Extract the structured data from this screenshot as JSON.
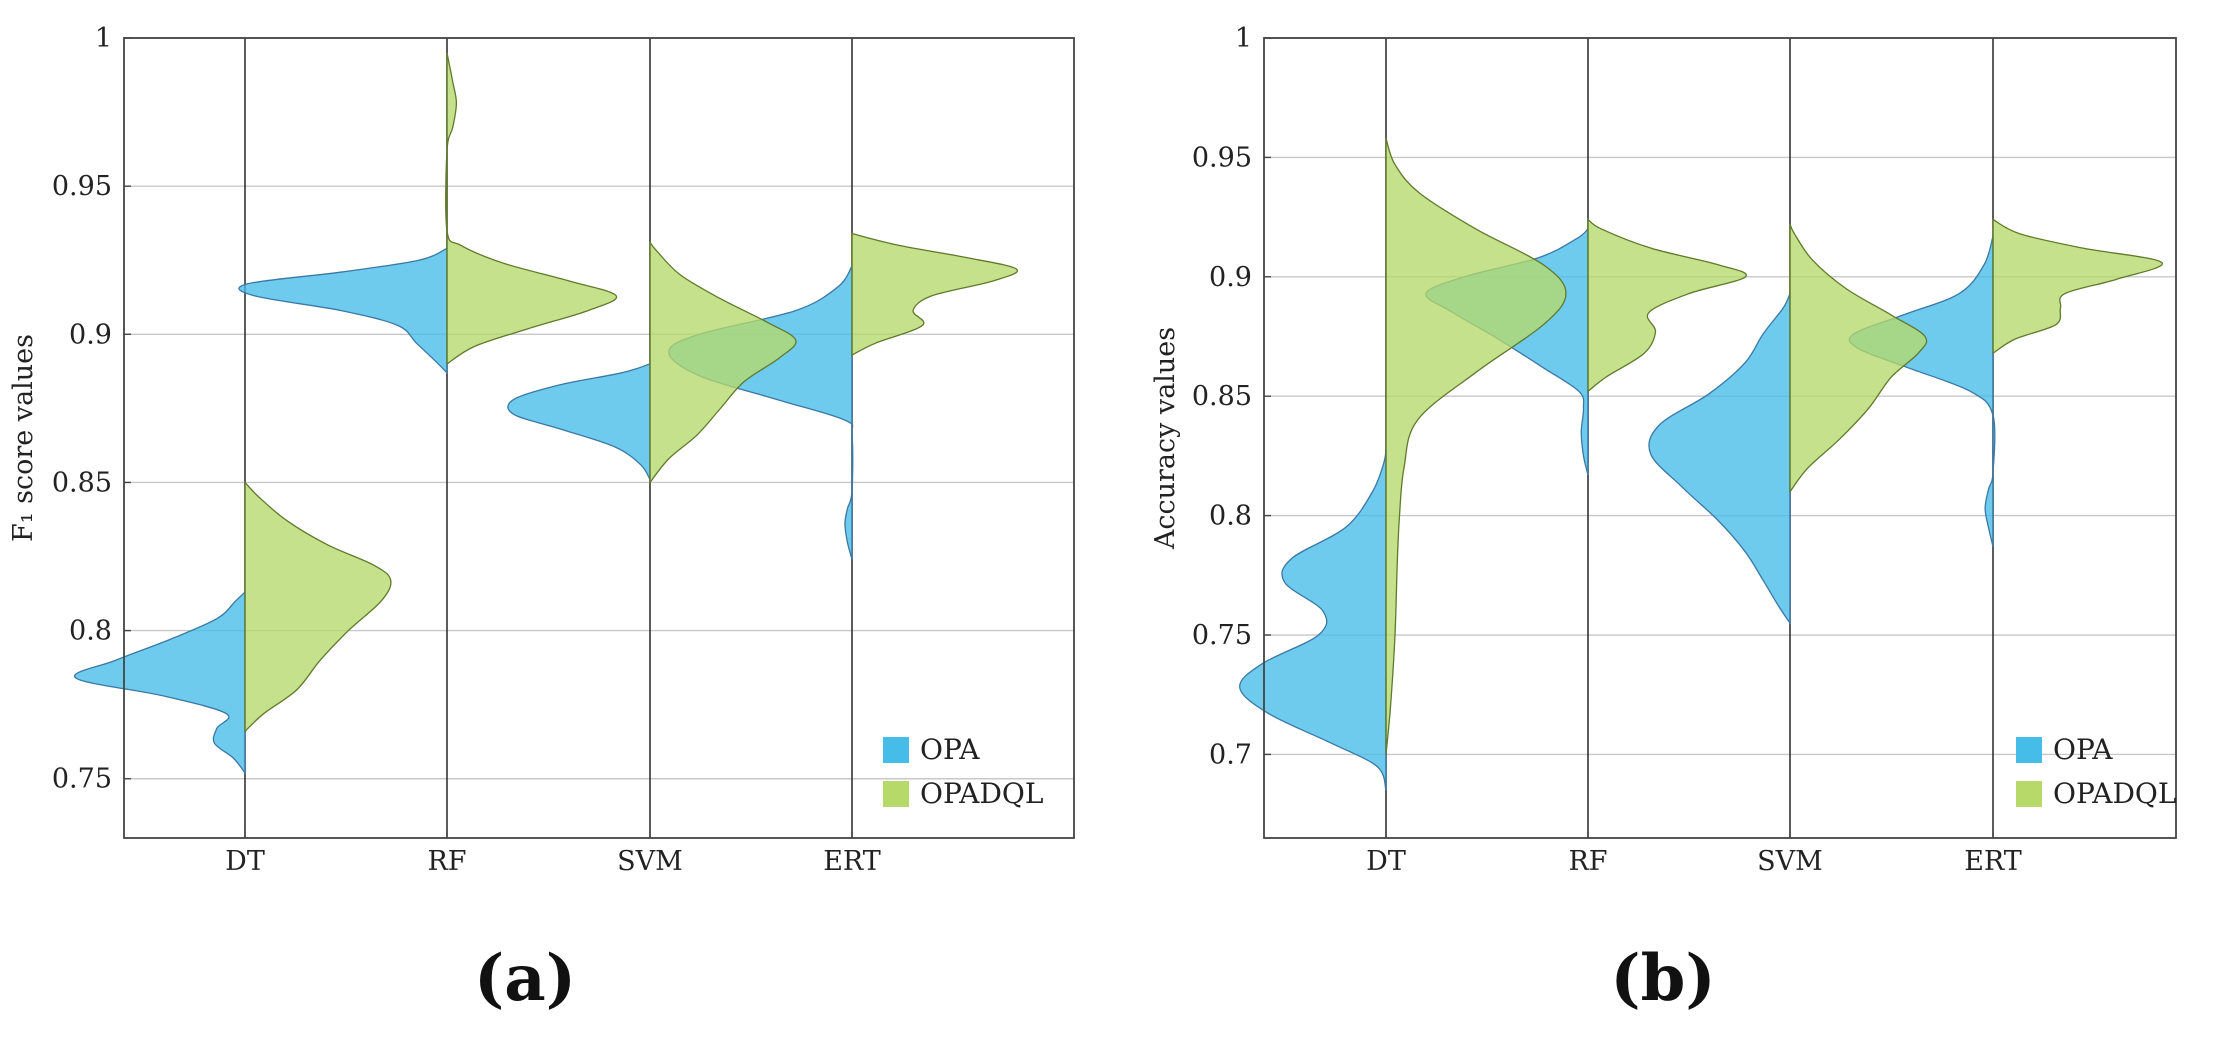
{
  "colors": {
    "opa": "#45bde8",
    "opadql": "#b6d96a"
  },
  "chart_data": [
    {
      "type": "violin",
      "panel_label": "(a)",
      "ylabel": "F₁ score values",
      "ylim": [
        0.73,
        1.0
      ],
      "yticks": [
        0.75,
        0.8,
        0.85,
        0.9,
        0.95,
        1
      ],
      "ytick_labels": [
        "0.75",
        "0.8",
        "0.85",
        "0.9",
        "0.95",
        "1"
      ],
      "categories": [
        "DT",
        "RF",
        "SVM",
        "ERT"
      ],
      "legend": {
        "position": "bottom-right",
        "entries": [
          "OPA",
          "OPADQL"
        ]
      },
      "series": [
        {
          "name": "OPA",
          "side": "left",
          "violins": [
            [
              [
                0.752,
                0
              ],
              [
                0.757,
                0.05
              ],
              [
                0.762,
                0.13
              ],
              [
                0.767,
                0.12
              ],
              [
                0.772,
                0.08
              ],
              [
                0.778,
                0.35
              ],
              [
                0.784,
                0.72
              ],
              [
                0.79,
                0.55
              ],
              [
                0.797,
                0.32
              ],
              [
                0.804,
                0.12
              ],
              [
                0.81,
                0.04
              ],
              [
                0.813,
                0
              ]
            ],
            [
              [
                0.887,
                0
              ],
              [
                0.891,
                0.05
              ],
              [
                0.897,
                0.13
              ],
              [
                0.903,
                0.21
              ],
              [
                0.908,
                0.45
              ],
              [
                0.913,
                0.82
              ],
              [
                0.917,
                0.85
              ],
              [
                0.921,
                0.45
              ],
              [
                0.925,
                0.12
              ],
              [
                0.929,
                0
              ]
            ],
            [
              [
                0.851,
                0
              ],
              [
                0.856,
                0.04
              ],
              [
                0.862,
                0.15
              ],
              [
                0.868,
                0.38
              ],
              [
                0.873,
                0.58
              ],
              [
                0.878,
                0.58
              ],
              [
                0.883,
                0.38
              ],
              [
                0.887,
                0.12
              ],
              [
                0.89,
                0
              ]
            ],
            [
              [
                0.824,
                0
              ],
              [
                0.83,
                0.02
              ],
              [
                0.836,
                0.03
              ],
              [
                0.841,
                0.02
              ],
              [
                0.847,
                0
              ],
              [
                0.866,
                0
              ],
              [
                0.871,
                0.03
              ],
              [
                0.878,
                0.32
              ],
              [
                0.886,
                0.65
              ],
              [
                0.894,
                0.78
              ],
              [
                0.9,
                0.65
              ],
              [
                0.908,
                0.24
              ],
              [
                0.916,
                0.06
              ],
              [
                0.923,
                0
              ]
            ]
          ]
        },
        {
          "name": "OPADQL",
          "side": "right",
          "violins": [
            [
              [
                0.766,
                0
              ],
              [
                0.772,
                0.08
              ],
              [
                0.78,
                0.22
              ],
              [
                0.79,
                0.32
              ],
              [
                0.8,
                0.44
              ],
              [
                0.81,
                0.58
              ],
              [
                0.817,
                0.62
              ],
              [
                0.822,
                0.55
              ],
              [
                0.829,
                0.35
              ],
              [
                0.837,
                0.18
              ],
              [
                0.845,
                0.06
              ],
              [
                0.85,
                0
              ]
            ],
            [
              [
                0.89,
                0
              ],
              [
                0.896,
                0.12
              ],
              [
                0.902,
                0.35
              ],
              [
                0.908,
                0.6
              ],
              [
                0.913,
                0.72
              ],
              [
                0.918,
                0.52
              ],
              [
                0.924,
                0.24
              ],
              [
                0.93,
                0.06
              ],
              [
                0.935,
                0
              ],
              [
                0.962,
                0
              ],
              [
                0.97,
                0.025
              ],
              [
                0.978,
                0.04
              ],
              [
                0.985,
                0.025
              ],
              [
                0.995,
                0
              ]
            ],
            [
              [
                0.85,
                0
              ],
              [
                0.858,
                0.08
              ],
              [
                0.866,
                0.2
              ],
              [
                0.875,
                0.3
              ],
              [
                0.884,
                0.4
              ],
              [
                0.892,
                0.55
              ],
              [
                0.898,
                0.62
              ],
              [
                0.904,
                0.5
              ],
              [
                0.912,
                0.3
              ],
              [
                0.92,
                0.13
              ],
              [
                0.928,
                0.03
              ],
              [
                0.931,
                0
              ]
            ],
            [
              [
                0.893,
                0
              ],
              [
                0.897,
                0.1
              ],
              [
                0.903,
                0.3
              ],
              [
                0.908,
                0.26
              ],
              [
                0.913,
                0.34
              ],
              [
                0.918,
                0.6
              ],
              [
                0.922,
                0.7
              ],
              [
                0.926,
                0.48
              ],
              [
                0.93,
                0.2
              ],
              [
                0.934,
                0
              ]
            ]
          ]
        }
      ]
    },
    {
      "type": "violin",
      "panel_label": "(b)",
      "ylabel": "Accuracy values",
      "ylim": [
        0.665,
        1.0
      ],
      "yticks": [
        0.7,
        0.75,
        0.8,
        0.85,
        0.9,
        0.95,
        1
      ],
      "ytick_labels": [
        "0.7",
        "0.75",
        "0.8",
        "0.85",
        "0.9",
        "0.95",
        "1"
      ],
      "categories": [
        "DT",
        "RF",
        "SVM",
        "ERT"
      ],
      "legend": {
        "position": "bottom-right",
        "entries": [
          "OPA",
          "OPADQL"
        ]
      },
      "series": [
        {
          "name": "OPA",
          "side": "left",
          "violins": [
            [
              [
                0.685,
                0
              ],
              [
                0.695,
                0.04
              ],
              [
                0.705,
                0.25
              ],
              [
                0.717,
                0.52
              ],
              [
                0.728,
                0.65
              ],
              [
                0.738,
                0.55
              ],
              [
                0.75,
                0.3
              ],
              [
                0.76,
                0.28
              ],
              [
                0.772,
                0.45
              ],
              [
                0.782,
                0.42
              ],
              [
                0.795,
                0.18
              ],
              [
                0.81,
                0.06
              ],
              [
                0.822,
                0.01
              ],
              [
                0.828,
                0
              ]
            ],
            [
              [
                0.817,
                0
              ],
              [
                0.825,
                0.02
              ],
              [
                0.835,
                0.03
              ],
              [
                0.845,
                0.02
              ],
              [
                0.852,
                0.04
              ],
              [
                0.862,
                0.2
              ],
              [
                0.874,
                0.4
              ],
              [
                0.885,
                0.6
              ],
              [
                0.893,
                0.72
              ],
              [
                0.9,
                0.55
              ],
              [
                0.908,
                0.22
              ],
              [
                0.916,
                0.05
              ],
              [
                0.92,
                0
              ]
            ],
            [
              [
                0.755,
                0
              ],
              [
                0.762,
                0.05
              ],
              [
                0.773,
                0.12
              ],
              [
                0.785,
                0.2
              ],
              [
                0.798,
                0.32
              ],
              [
                0.812,
                0.48
              ],
              [
                0.826,
                0.62
              ],
              [
                0.838,
                0.58
              ],
              [
                0.851,
                0.36
              ],
              [
                0.864,
                0.2
              ],
              [
                0.876,
                0.12
              ],
              [
                0.887,
                0.03
              ],
              [
                0.893,
                0
              ]
            ],
            [
              [
                0.787,
                0
              ],
              [
                0.795,
                0.02
              ],
              [
                0.803,
                0.035
              ],
              [
                0.811,
                0.02
              ],
              [
                0.818,
                0
              ],
              [
                0.842,
                0
              ],
              [
                0.852,
                0.1
              ],
              [
                0.862,
                0.38
              ],
              [
                0.87,
                0.6
              ],
              [
                0.876,
                0.62
              ],
              [
                0.884,
                0.4
              ],
              [
                0.893,
                0.15
              ],
              [
                0.905,
                0.04
              ],
              [
                0.917,
                0
              ]
            ]
          ]
        },
        {
          "name": "OPADQL",
          "side": "right",
          "violins": [
            [
              [
                0.7,
                0
              ],
              [
                0.72,
                0.02
              ],
              [
                0.75,
                0.04
              ],
              [
                0.78,
                0.05
              ],
              [
                0.8,
                0.06
              ],
              [
                0.82,
                0.08
              ],
              [
                0.84,
                0.14
              ],
              [
                0.86,
                0.4
              ],
              [
                0.88,
                0.7
              ],
              [
                0.893,
                0.8
              ],
              [
                0.905,
                0.7
              ],
              [
                0.92,
                0.4
              ],
              [
                0.935,
                0.15
              ],
              [
                0.947,
                0.04
              ],
              [
                0.958,
                0
              ]
            ],
            [
              [
                0.852,
                0
              ],
              [
                0.858,
                0.08
              ],
              [
                0.868,
                0.25
              ],
              [
                0.877,
                0.3
              ],
              [
                0.885,
                0.27
              ],
              [
                0.893,
                0.45
              ],
              [
                0.9,
                0.7
              ],
              [
                0.905,
                0.58
              ],
              [
                0.912,
                0.28
              ],
              [
                0.92,
                0.06
              ],
              [
                0.924,
                0
              ]
            ],
            [
              [
                0.81,
                0
              ],
              [
                0.82,
                0.08
              ],
              [
                0.832,
                0.22
              ],
              [
                0.845,
                0.35
              ],
              [
                0.858,
                0.45
              ],
              [
                0.868,
                0.57
              ],
              [
                0.875,
                0.6
              ],
              [
                0.884,
                0.45
              ],
              [
                0.895,
                0.25
              ],
              [
                0.907,
                0.1
              ],
              [
                0.918,
                0.02
              ],
              [
                0.922,
                0
              ]
            ],
            [
              [
                0.868,
                0
              ],
              [
                0.874,
                0.1
              ],
              [
                0.88,
                0.28
              ],
              [
                0.887,
                0.3
              ],
              [
                0.893,
                0.32
              ],
              [
                0.899,
                0.55
              ],
              [
                0.906,
                0.75
              ],
              [
                0.912,
                0.4
              ],
              [
                0.918,
                0.12
              ],
              [
                0.924,
                0
              ]
            ]
          ]
        }
      ]
    }
  ]
}
